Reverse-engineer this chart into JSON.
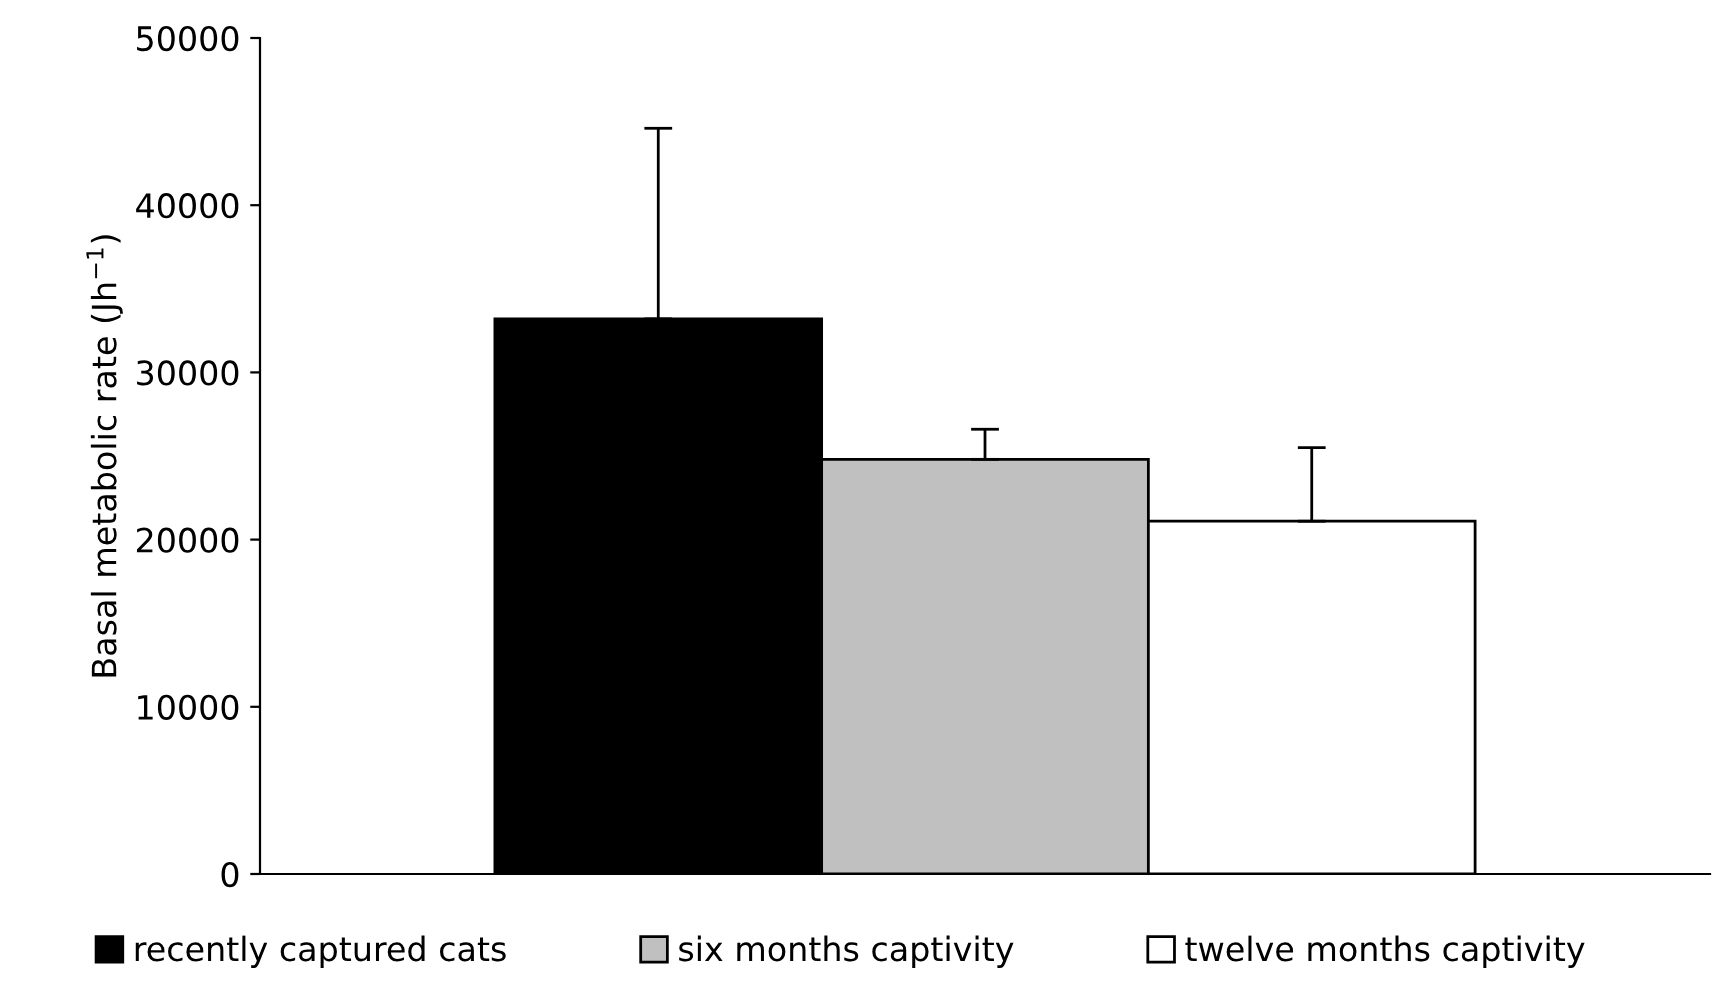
{
  "chart_data": {
    "type": "bar",
    "ylabel": "Basal metabolic rate (Jh$^{−1}$)",
    "categories": [
      null
    ],
    "series": [
      {
        "name": "recently captured cats",
        "color": "#000000",
        "values": [
          33200
        ],
        "errors": [
          [
            33200,
            44600
          ]
        ]
      },
      {
        "name": "six months captivity",
        "color": "#c0c0c0",
        "values": [
          24800
        ],
        "errors": [
          [
            24800,
            26600
          ]
        ]
      },
      {
        "name": "twelve months captivity",
        "color": "#ffffff",
        "values": [
          21100
        ],
        "errors": [
          [
            21100,
            25500
          ]
        ]
      }
    ],
    "ylim": [
      0,
      50000
    ],
    "yticks": [
      0,
      10000,
      20000,
      30000,
      40000,
      50000
    ],
    "grid": false,
    "legend": "bottom"
  }
}
